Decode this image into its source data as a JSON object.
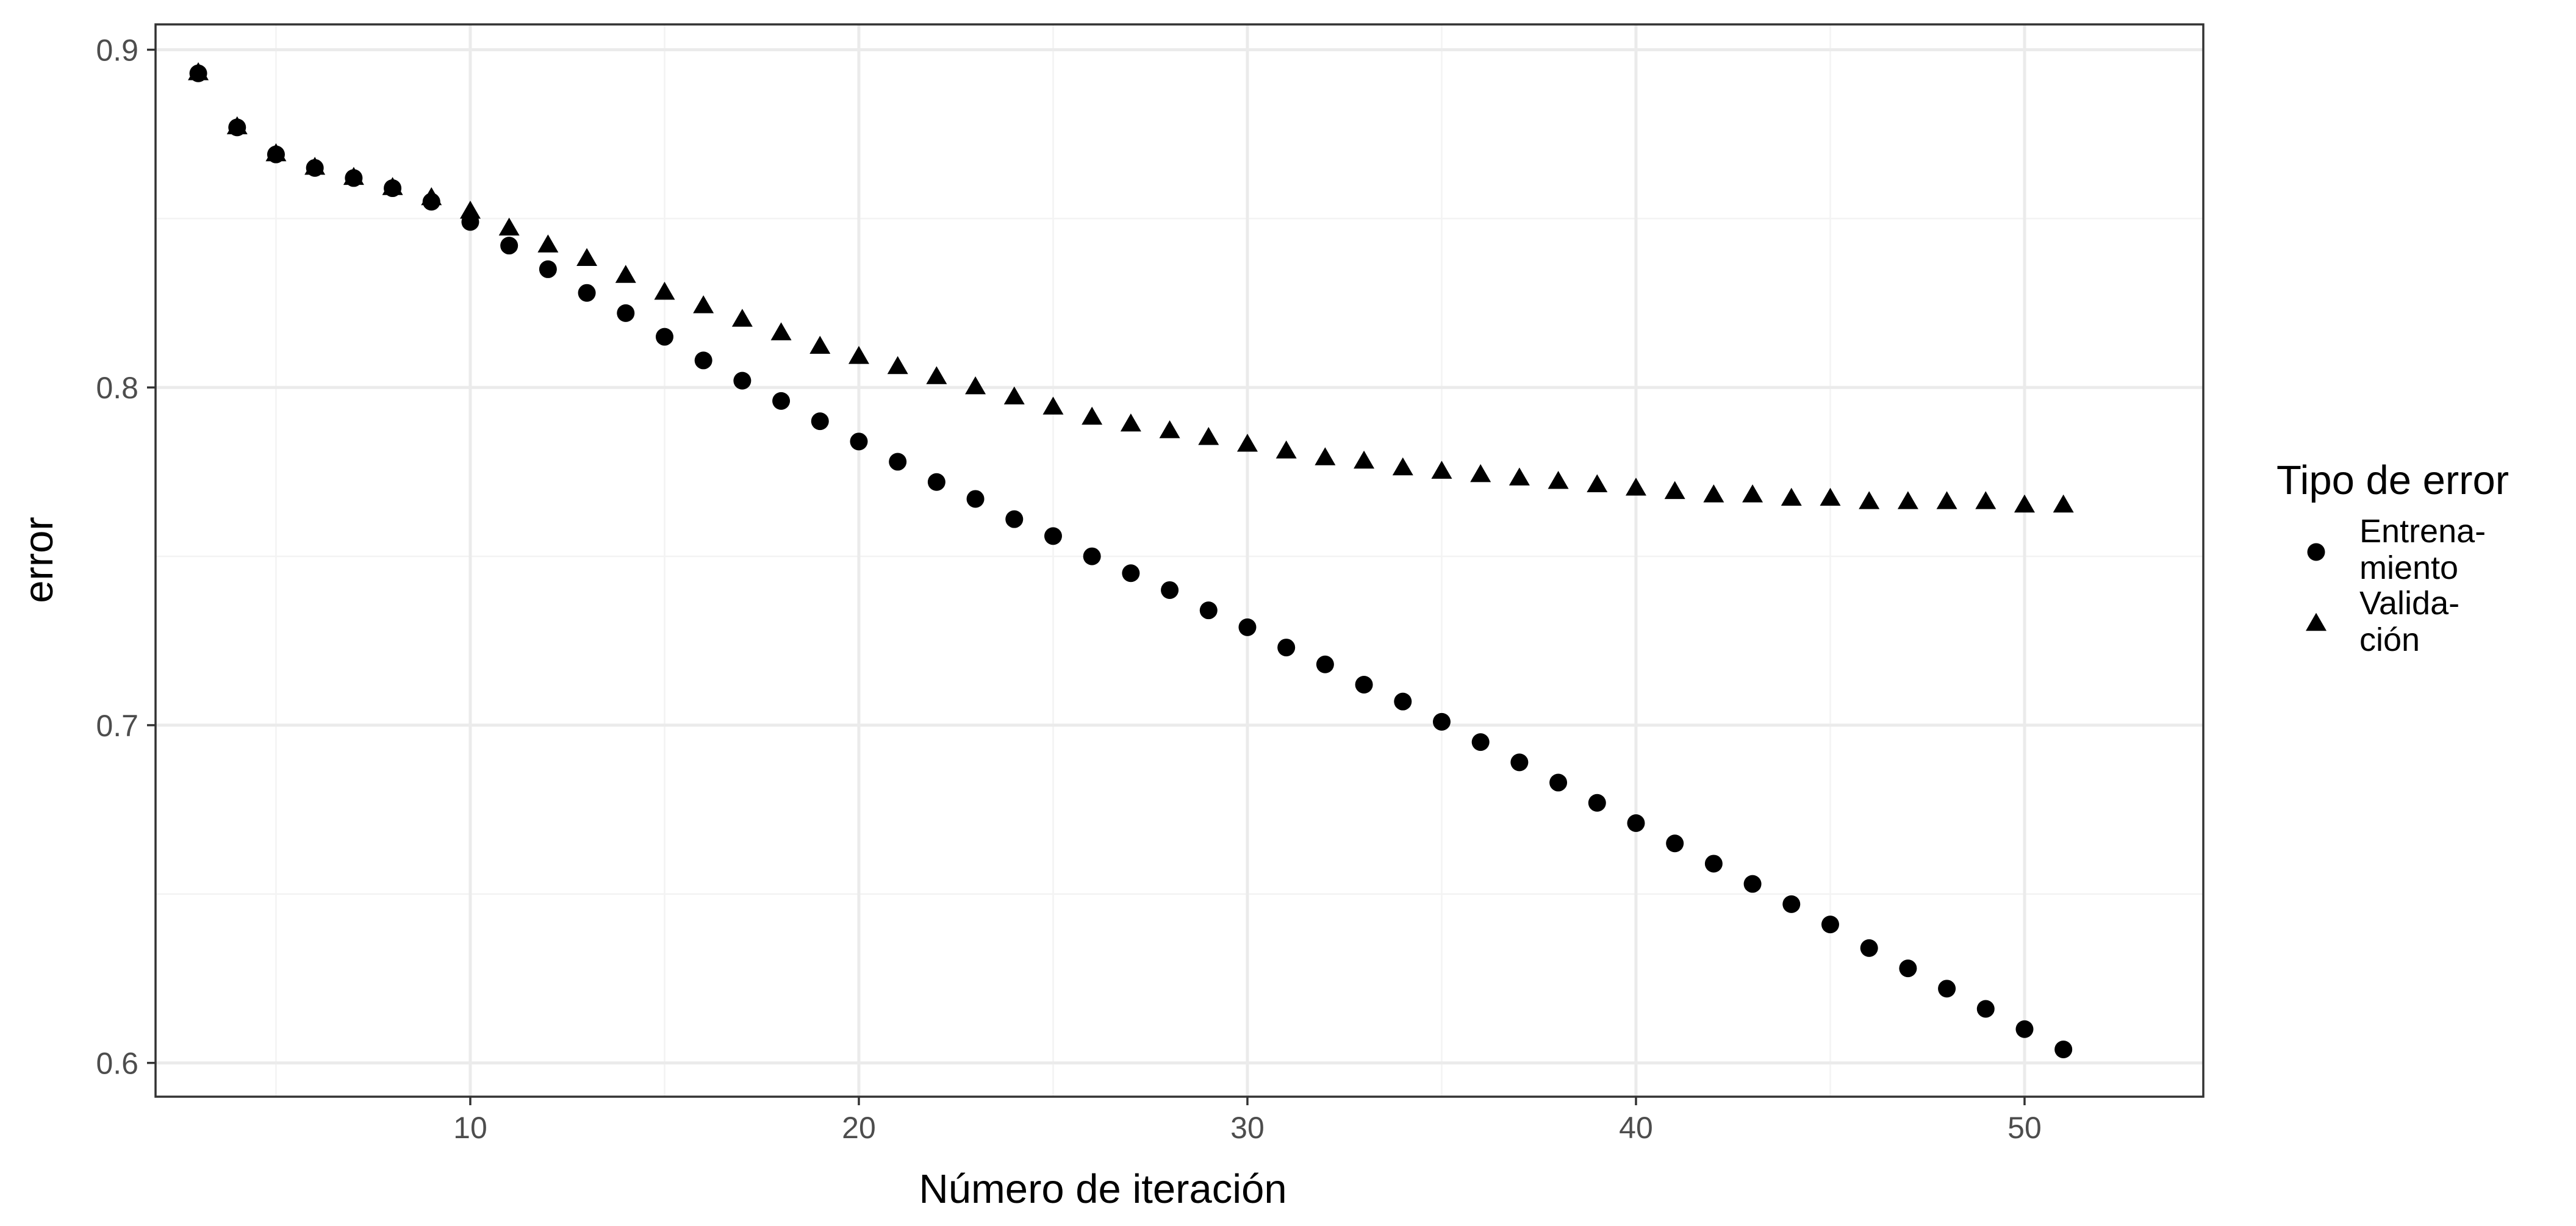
{
  "chart_data": {
    "type": "scatter",
    "title": "",
    "xlabel": "Número de iteración",
    "ylabel": "error",
    "xlim": [
      1.9,
      54.6
    ],
    "ylim": [
      0.59,
      0.9075
    ],
    "x_ticks": [
      10,
      20,
      30,
      40,
      50
    ],
    "x_tick_labels": [
      "10",
      "20",
      "30",
      "40",
      "50"
    ],
    "y_ticks": [
      0.6,
      0.7,
      0.8,
      0.9
    ],
    "y_tick_labels": [
      "0.6",
      "0.7",
      "0.8",
      "0.9"
    ],
    "grid": true,
    "legend": {
      "title": "Tipo de error",
      "position": "right",
      "entries": [
        {
          "label_lines": [
            "Entrena-",
            "miento"
          ],
          "shape": "circle"
        },
        {
          "label_lines": [
            "Valida-",
            "ción"
          ],
          "shape": "triangle"
        }
      ]
    },
    "x": [
      3,
      4,
      5,
      6,
      7,
      8,
      9,
      10,
      11,
      12,
      13,
      14,
      15,
      16,
      17,
      18,
      19,
      20,
      21,
      22,
      23,
      24,
      25,
      26,
      27,
      28,
      29,
      30,
      31,
      32,
      33,
      34,
      35,
      36,
      37,
      38,
      39,
      40,
      41,
      42,
      43,
      44,
      45,
      46,
      47,
      48,
      49,
      50,
      51
    ],
    "series": [
      {
        "key": "entrenamiento",
        "shape": "circle",
        "values": [
          0.893,
          0.877,
          0.869,
          0.865,
          0.862,
          0.859,
          0.855,
          0.849,
          0.842,
          0.835,
          0.828,
          0.822,
          0.815,
          0.808,
          0.802,
          0.796,
          0.79,
          0.784,
          0.778,
          0.772,
          0.767,
          0.761,
          0.756,
          0.75,
          0.745,
          0.74,
          0.734,
          0.729,
          0.723,
          0.718,
          0.712,
          0.707,
          0.701,
          0.695,
          0.689,
          0.683,
          0.677,
          0.671,
          0.665,
          0.659,
          0.653,
          0.647,
          0.641,
          0.634,
          0.628,
          0.622,
          0.616,
          0.61,
          0.604
        ]
      },
      {
        "key": "validacion",
        "shape": "triangle",
        "values": [
          0.893,
          0.877,
          0.869,
          0.865,
          0.862,
          0.859,
          0.856,
          0.852,
          0.847,
          0.842,
          0.838,
          0.833,
          0.828,
          0.824,
          0.82,
          0.816,
          0.812,
          0.809,
          0.806,
          0.803,
          0.8,
          0.797,
          0.794,
          0.791,
          0.789,
          0.787,
          0.785,
          0.783,
          0.781,
          0.779,
          0.778,
          0.776,
          0.775,
          0.774,
          0.773,
          0.772,
          0.771,
          0.77,
          0.769,
          0.768,
          0.768,
          0.767,
          0.767,
          0.766,
          0.766,
          0.766,
          0.766,
          0.765,
          0.765
        ]
      }
    ],
    "colors": {
      "points": "#000000",
      "grid": "#ebebeb",
      "panel_border": "#333333",
      "tick_labels": "#4d4d4d"
    }
  }
}
